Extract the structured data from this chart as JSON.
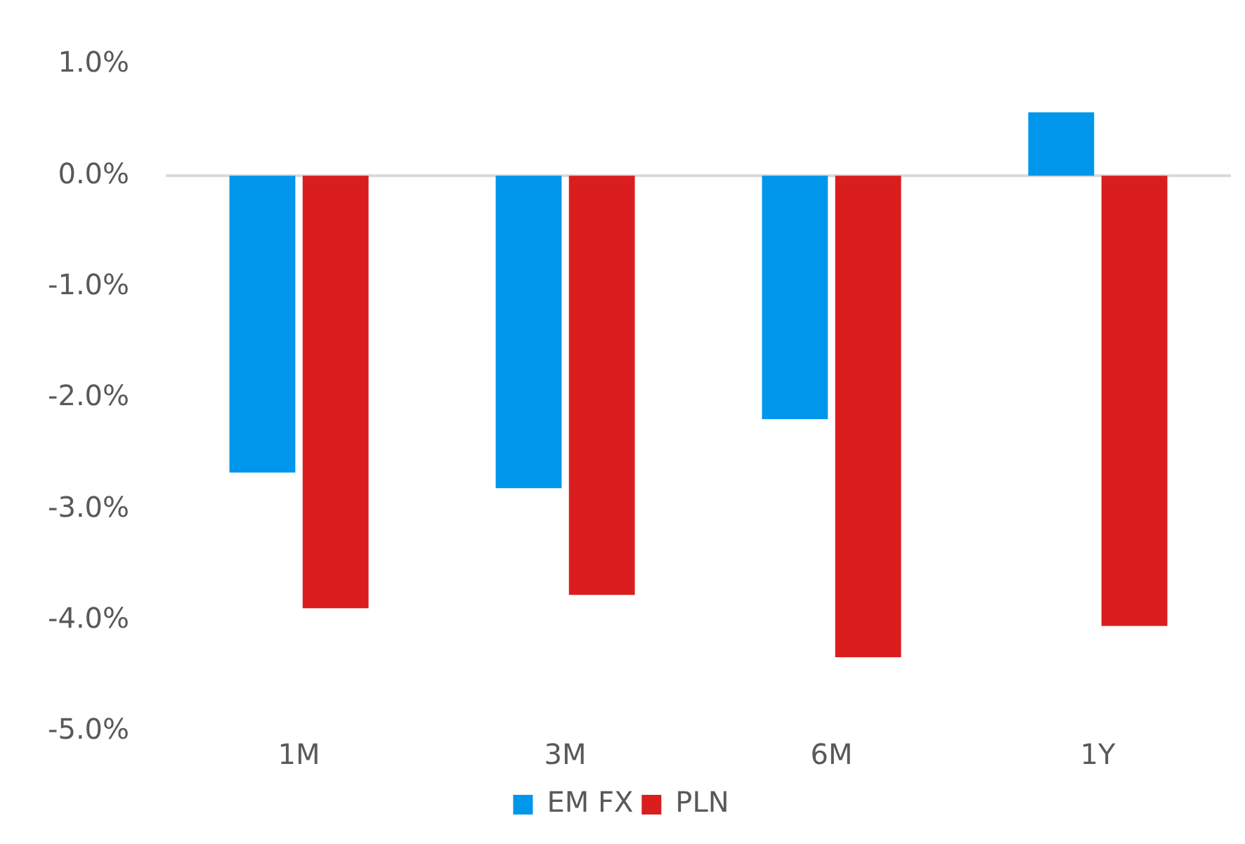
{
  "chart_data": {
    "type": "bar",
    "categories": [
      "1M",
      "3M",
      "6M",
      "1Y"
    ],
    "series": [
      {
        "name": "EM FX",
        "color": "#0096eb",
        "values": [
          -2.67,
          -2.81,
          -2.19,
          0.57
        ]
      },
      {
        "name": "PLN",
        "color": "#da1e1e",
        "values": [
          -3.89,
          -3.77,
          -4.33,
          -4.05
        ]
      }
    ],
    "ylim": [
      -5,
      1
    ],
    "yticks": [
      {
        "value": -5,
        "label": "-5.0%"
      },
      {
        "value": -4,
        "label": "-4.0%"
      },
      {
        "value": -3,
        "label": "-3.0%"
      },
      {
        "value": -2,
        "label": "-2.0%"
      },
      {
        "value": -1,
        "label": "-1.0%"
      },
      {
        "value": 0,
        "label": "0.0%"
      },
      {
        "value": 1,
        "label": "1.0%"
      }
    ],
    "ref_lines": [
      {
        "axis": "y",
        "value": 0,
        "color": "#d9d9d9"
      }
    ],
    "grid": false,
    "legend": "bottom"
  }
}
